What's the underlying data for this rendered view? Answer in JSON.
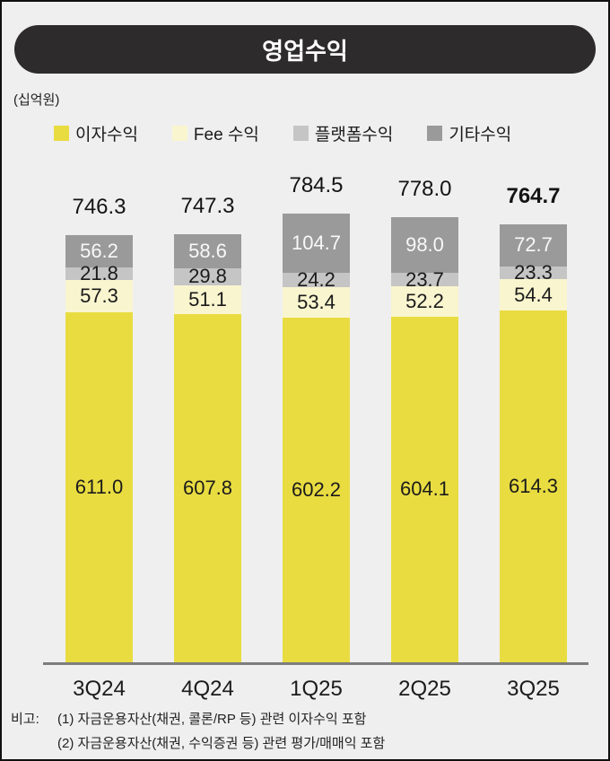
{
  "header": {
    "title": "영업수익",
    "bg_color": "#2d2b2b",
    "text_color": "#ffffff"
  },
  "unit_label": "(십억원)",
  "chart_data": {
    "type": "bar",
    "stacked": true,
    "title": "영업수익",
    "unit": "십억원",
    "legend_position": "top",
    "grid": false,
    "categories": [
      "3Q24",
      "4Q24",
      "1Q25",
      "2Q25",
      "3Q25"
    ],
    "series": [
      {
        "id": "interest-income",
        "name": "이자수익",
        "color": "#e9dc41",
        "label_color": "#1b1b1b",
        "values": [
          611.0,
          607.8,
          602.2,
          604.1,
          614.3
        ]
      },
      {
        "id": "fee-income",
        "name": "Fee 수익",
        "color": "#f9f5cf",
        "label_color": "#1b1b1b",
        "values": [
          57.3,
          51.1,
          53.4,
          52.2,
          54.4
        ]
      },
      {
        "id": "platform-income",
        "name": "플랫폼수익",
        "color": "#c5c5c5",
        "label_color": "#1b1b1b",
        "values": [
          21.8,
          29.8,
          24.2,
          23.7,
          23.3
        ]
      },
      {
        "id": "other-income",
        "name": "기타수익",
        "color": "#9a9a9a",
        "label_color": "#f8f8f8",
        "values": [
          56.2,
          58.6,
          104.7,
          98.0,
          72.7
        ]
      }
    ],
    "totals": [
      746.3,
      747.3,
      784.5,
      778.0,
      764.7
    ],
    "bold_totals": [
      false,
      false,
      false,
      false,
      true
    ]
  },
  "footnote": {
    "label": "비고:",
    "lines": [
      "(1) 자금운용자산(채권, 콜론/RP 등) 관련 이자수익 포함",
      "(2) 자금운용자산(채권, 수익증권 등) 관련 평가/매매익 포함"
    ]
  }
}
